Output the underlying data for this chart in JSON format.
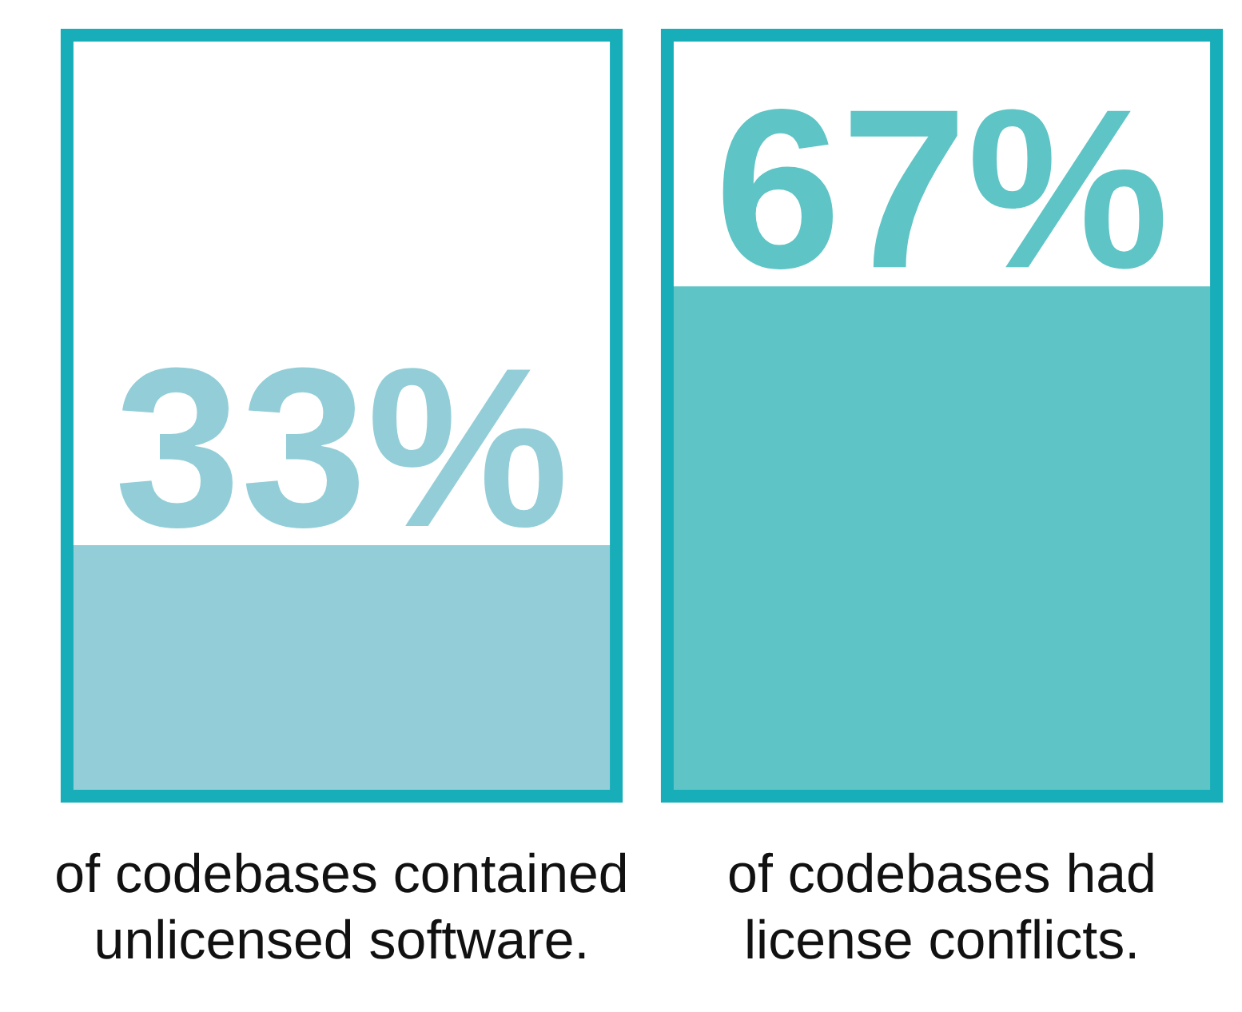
{
  "chart_data": {
    "type": "bar",
    "categories": [
      "of codebases contained unlicensed software.",
      "of codebases had license conflicts."
    ],
    "values": [
      33,
      67
    ],
    "colors": [
      "#93ced8",
      "#5fc4c5"
    ],
    "value_labels": [
      "33%",
      "67%"
    ],
    "ylim": [
      0,
      100
    ],
    "tick_labels": "x"
  }
}
